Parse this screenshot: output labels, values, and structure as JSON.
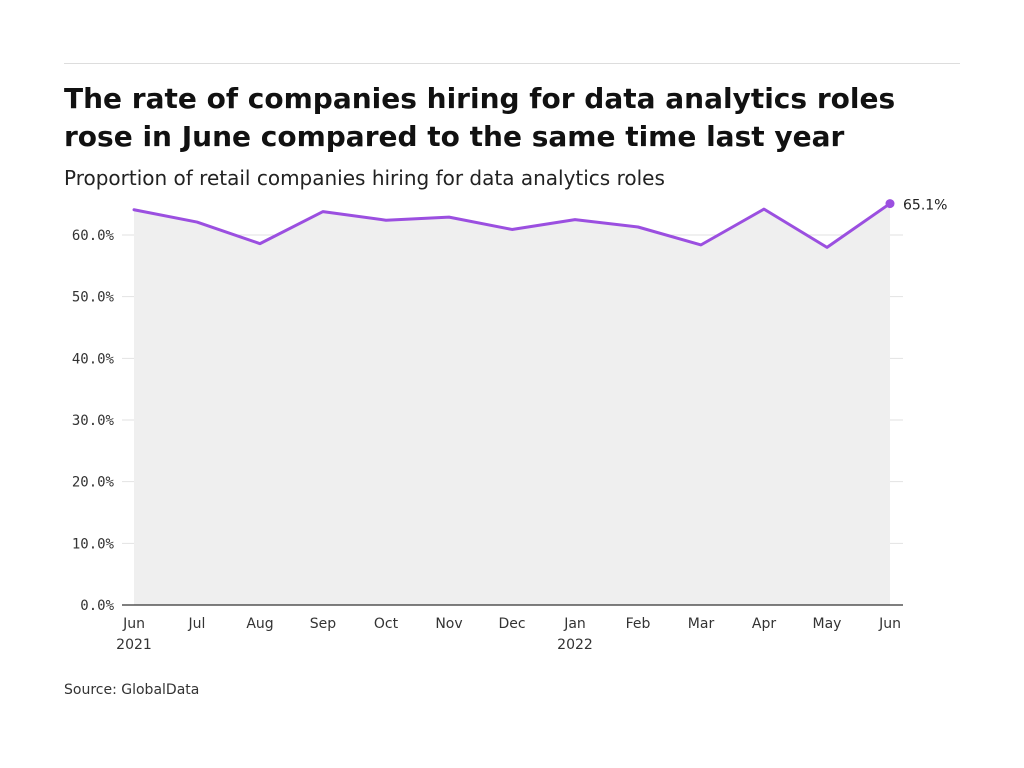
{
  "header": {
    "title": "The rate of companies hiring for data analytics roles rose in June compared to the same time last year",
    "subtitle": "Proportion of retail companies hiring for data analytics roles"
  },
  "footer": {
    "source": "Source: GlobalData"
  },
  "colors": {
    "line": "#9b4fe0",
    "area": "#efefef",
    "grid": "#e2e2e2",
    "axis": "#333333",
    "tick_text": "#333333"
  },
  "chart_data": {
    "type": "line",
    "title": "The rate of companies hiring for data analytics roles rose in June compared to the same time last year",
    "subtitle": "Proportion of retail companies hiring for data analytics roles",
    "x": [
      "Jun 2021",
      "Jul 2021",
      "Aug 2021",
      "Sep 2021",
      "Oct 2021",
      "Nov 2021",
      "Dec 2021",
      "Jan 2022",
      "Feb 2022",
      "Mar 2022",
      "Apr 2022",
      "May 2022",
      "Jun 2022"
    ],
    "x_tick_labels": [
      {
        "month": "Jun",
        "year": "2021"
      },
      {
        "month": "Jul",
        "year": ""
      },
      {
        "month": "Aug",
        "year": ""
      },
      {
        "month": "Sep",
        "year": ""
      },
      {
        "month": "Oct",
        "year": ""
      },
      {
        "month": "Nov",
        "year": ""
      },
      {
        "month": "Dec",
        "year": ""
      },
      {
        "month": "Jan",
        "year": "2022"
      },
      {
        "month": "Feb",
        "year": ""
      },
      {
        "month": "Mar",
        "year": ""
      },
      {
        "month": "Apr",
        "year": ""
      },
      {
        "month": "May",
        "year": ""
      },
      {
        "month": "Jun",
        "year": ""
      }
    ],
    "series": [
      {
        "values": [
          64.1,
          62.1,
          58.6,
          63.8,
          62.4,
          62.9,
          60.9,
          62.5,
          61.3,
          58.4,
          64.2,
          58.0,
          65.1
        ]
      }
    ],
    "y_ticks": [
      0,
      10,
      20,
      30,
      40,
      50,
      60
    ],
    "y_tick_labels": [
      "0.0%",
      "10.0%",
      "20.0%",
      "30.0%",
      "40.0%",
      "50.0%",
      "60.0%"
    ],
    "ylim": [
      0,
      67.3
    ],
    "end_label": "65.1%",
    "xlabel": "",
    "ylabel": "",
    "grid": true,
    "area_fill": true
  }
}
